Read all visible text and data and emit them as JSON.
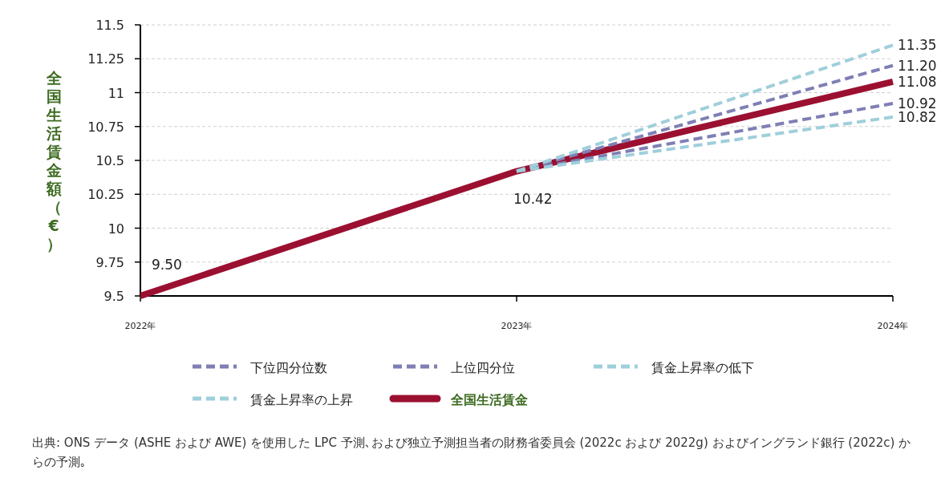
{
  "chart_data": {
    "type": "line",
    "ylabel": "全国生活賃金額（€）",
    "x": [
      2022,
      2023,
      2024
    ],
    "xlim": [
      2022,
      2024
    ],
    "xticks": [
      {
        "value": 2022,
        "label": "2022年"
      },
      {
        "value": 2023,
        "label": "2023年"
      },
      {
        "value": 2024,
        "label": "2024年"
      }
    ],
    "ylim": [
      9.5,
      11.5
    ],
    "yticks": [
      9.5,
      9.75,
      10,
      10.25,
      10.5,
      10.75,
      11,
      11.25,
      11.5
    ],
    "grid": "y",
    "legend": "bottom",
    "marker": "none",
    "series": [
      {
        "name": "下位四分位数",
        "color": "#7f7fb5",
        "line_style": "dashed",
        "values": [
          null,
          10.42,
          10.92
        ],
        "value_labels": [
          null,
          null,
          "10.92"
        ]
      },
      {
        "name": "上位四分位",
        "color": "#7f7fb5",
        "line_style": "dashed",
        "values": [
          null,
          10.42,
          11.2
        ],
        "value_labels": [
          null,
          null,
          "11.20"
        ]
      },
      {
        "name": "賃金上昇率の低下",
        "color": "#9fcfdb",
        "line_style": "dashed",
        "values": [
          null,
          10.42,
          10.82
        ],
        "value_labels": [
          null,
          null,
          "10.82"
        ]
      },
      {
        "name": "賃金上昇率の上昇",
        "color": "#9fcfdb",
        "line_style": "dashed",
        "values": [
          null,
          10.42,
          11.35
        ],
        "value_labels": [
          null,
          null,
          "11.35"
        ]
      },
      {
        "name": "全国生活賃金",
        "color": "#9b1030",
        "line_style": "solid",
        "values": [
          9.5,
          10.42,
          11.08
        ],
        "value_labels": [
          "9.50",
          "10.42",
          "11.08"
        ]
      }
    ],
    "annotations": [
      "出典: ONS データ (ASHE および AWE) を使用した LPC 予測､および独立予測担当者の財務省委員会 (2022c および 2022g) およびイングランド銀行 (2022c) からの予測｡"
    ]
  }
}
